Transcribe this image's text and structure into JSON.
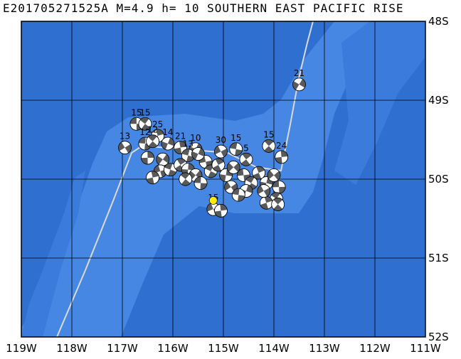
{
  "title": "E201705271525A M=4.9 h= 10 SOUTHERN EAST PACIFIC RISE",
  "colors": {
    "deep_ocean": "#2f6fd0",
    "shallow_ocean": "#4587e3",
    "ridge_line": "#d9d9d9",
    "grid": "#000000",
    "beachball_dark": "#5a5a5a",
    "beachball_light": "#ffffff",
    "epicenter": "#ffee00"
  },
  "map": {
    "lon_range": [
      -119,
      -111
    ],
    "lat_range": [
      -52,
      -48
    ],
    "x_tick_labels": [
      "119W",
      "118W",
      "117W",
      "116W",
      "115W",
      "114W",
      "113W",
      "112W",
      "111W"
    ],
    "y_tick_labels": [
      "48S",
      "49S",
      "50S",
      "51S",
      "52S"
    ],
    "epicenter": {
      "lon": -115.2,
      "lat": -50.27
    },
    "events": [
      {
        "lon": -116.72,
        "lat": -49.3,
        "label": "15"
      },
      {
        "lon": -116.55,
        "lat": -49.3,
        "label": "15"
      },
      {
        "lon": -116.3,
        "lat": -49.45,
        "label": "25"
      },
      {
        "lon": -116.1,
        "lat": -49.55,
        "label": "14"
      },
      {
        "lon": -116.95,
        "lat": -49.6,
        "label": "13"
      },
      {
        "lon": -116.55,
        "lat": -49.55,
        "label": "12"
      },
      {
        "lon": -116.4,
        "lat": -49.52,
        "label": "12"
      },
      {
        "lon": -115.85,
        "lat": -49.6,
        "label": "21"
      },
      {
        "lon": -115.55,
        "lat": -49.62,
        "label": "10"
      },
      {
        "lon": -115.05,
        "lat": -49.65,
        "label": "30"
      },
      {
        "lon": -114.75,
        "lat": -49.62,
        "label": "15"
      },
      {
        "lon": -114.1,
        "lat": -49.58,
        "label": "15"
      },
      {
        "lon": -113.85,
        "lat": -49.72,
        "label": "24"
      },
      {
        "lon": -113.5,
        "lat": -48.8,
        "label": "21"
      },
      {
        "lon": -115.2,
        "lat": -50.38,
        "label": "15"
      },
      {
        "lon": -115.7,
        "lat": -49.7,
        "label": "13"
      },
      {
        "lon": -114.55,
        "lat": -49.75,
        "label": "5"
      },
      {
        "lon": -116.5,
        "lat": -49.73,
        "label": ""
      },
      {
        "lon": -116.2,
        "lat": -49.75,
        "label": ""
      },
      {
        "lon": -116.25,
        "lat": -49.9,
        "label": ""
      },
      {
        "lon": -116.05,
        "lat": -49.88,
        "label": ""
      },
      {
        "lon": -115.85,
        "lat": -49.82,
        "label": ""
      },
      {
        "lon": -115.7,
        "lat": -49.88,
        "label": ""
      },
      {
        "lon": -115.55,
        "lat": -49.95,
        "label": ""
      },
      {
        "lon": -115.35,
        "lat": -49.78,
        "label": ""
      },
      {
        "lon": -115.25,
        "lat": -49.9,
        "label": ""
      },
      {
        "lon": -115.1,
        "lat": -49.82,
        "label": ""
      },
      {
        "lon": -114.95,
        "lat": -49.95,
        "label": ""
      },
      {
        "lon": -114.8,
        "lat": -49.85,
        "label": ""
      },
      {
        "lon": -114.6,
        "lat": -49.95,
        "label": ""
      },
      {
        "lon": -114.45,
        "lat": -50.05,
        "label": ""
      },
      {
        "lon": -114.3,
        "lat": -49.92,
        "label": ""
      },
      {
        "lon": -114.15,
        "lat": -50.05,
        "label": ""
      },
      {
        "lon": -114.0,
        "lat": -49.95,
        "label": ""
      },
      {
        "lon": -113.9,
        "lat": -50.1,
        "label": ""
      },
      {
        "lon": -113.95,
        "lat": -50.25,
        "label": ""
      },
      {
        "lon": -114.15,
        "lat": -50.3,
        "label": ""
      },
      {
        "lon": -114.55,
        "lat": -50.15,
        "label": ""
      },
      {
        "lon": -114.85,
        "lat": -50.1,
        "label": ""
      },
      {
        "lon": -115.45,
        "lat": -50.05,
        "label": ""
      },
      {
        "lon": -115.75,
        "lat": -50.0,
        "label": ""
      },
      {
        "lon": -116.4,
        "lat": -49.98,
        "label": ""
      },
      {
        "lon": -115.5,
        "lat": -49.68,
        "label": ""
      },
      {
        "lon": -114.2,
        "lat": -50.15,
        "label": ""
      },
      {
        "lon": -114.7,
        "lat": -50.2,
        "label": ""
      },
      {
        "lon": -113.92,
        "lat": -50.32,
        "label": ""
      },
      {
        "lon": -115.05,
        "lat": -50.4,
        "label": ""
      }
    ]
  }
}
